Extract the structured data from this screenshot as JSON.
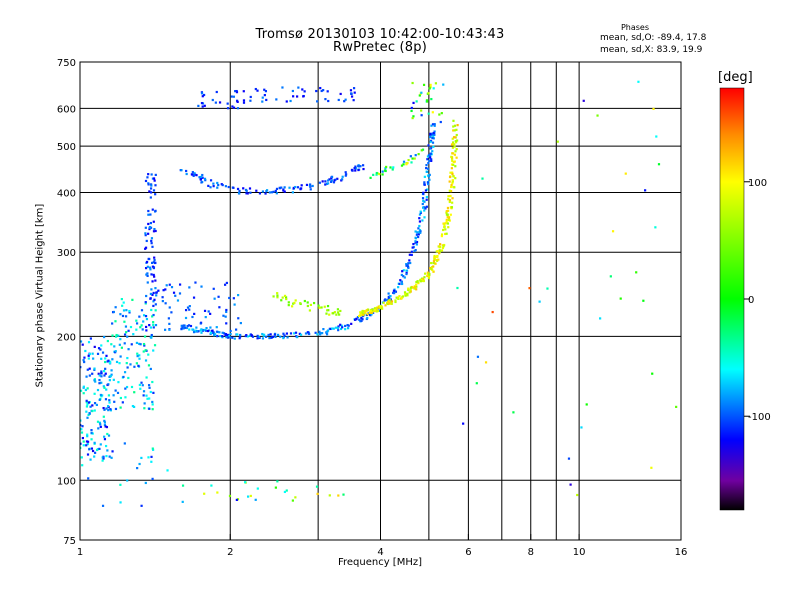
{
  "chart_data": {
    "type": "scatter",
    "title": "Tromsø 20130103 10:42:00-10:43:43",
    "subtitle": "RwPretec (8p)",
    "xlabel": "Frequency [MHz]",
    "ylabel": "Stationary phase Virtual Height [km]",
    "x_scale": "log",
    "y_scale": "log",
    "xlim": [
      1,
      16
    ],
    "ylim": [
      75,
      750
    ],
    "x_ticks": [
      1,
      2,
      4,
      6,
      8,
      10,
      16
    ],
    "x_tick_labels": [
      "1",
      "2",
      "4",
      "6",
      "8",
      "10",
      "16"
    ],
    "x_minor_ticks": [
      3,
      5,
      7,
      9
    ],
    "y_ticks": [
      75,
      100,
      200,
      300,
      400,
      500,
      600,
      750
    ],
    "y_tick_labels": [
      "75",
      "100",
      "200",
      "300",
      "400",
      "500",
      "600",
      "750"
    ],
    "grid": true,
    "colorbar": {
      "unit": "[deg]",
      "range": [
        -180,
        180
      ],
      "ticks": [
        100,
        0,
        -100
      ],
      "tick_labels": [
        "100",
        "0",
        "-100"
      ],
      "stops": [
        {
          "v": -180,
          "color": "#000000"
        },
        {
          "v": -155,
          "color": "#7000a0"
        },
        {
          "v": -120,
          "color": "#0000ff"
        },
        {
          "v": -60,
          "color": "#00ffff"
        },
        {
          "v": 0,
          "color": "#00ff00"
        },
        {
          "v": 100,
          "color": "#ffff00"
        },
        {
          "v": 140,
          "color": "#ff8c00"
        },
        {
          "v": 180,
          "color": "#ff0000"
        }
      ]
    },
    "phases_legend": {
      "title": "Phases",
      "line1": "mean, sd,O: -89.4, 17.8",
      "line2": "mean, sd,X:  83.9, 19.9"
    },
    "clusters": [
      {
        "x": [
          1.0,
          1.15
        ],
        "y": [
          110,
          200
        ],
        "n": 160,
        "phase": [
          -130,
          -40
        ]
      },
      {
        "x": [
          1.15,
          1.42
        ],
        "y": [
          140,
          240
        ],
        "n": 140,
        "phase": [
          -110,
          -30
        ]
      },
      {
        "x": [
          1.35,
          1.42
        ],
        "y": [
          200,
          450
        ],
        "n": 90,
        "phase": [
          -125,
          -85
        ]
      },
      {
        "x": [
          1.4,
          2.1
        ],
        "y": [
          205,
          260
        ],
        "n": 70,
        "phase": [
          -120,
          -80
        ]
      },
      {
        "x": [
          1.0,
          1.5
        ],
        "y": [
          88,
          120
        ],
        "n": 25,
        "phase": [
          -120,
          -40
        ]
      },
      {
        "x": [
          1.6,
          3.5
        ],
        "y": [
          90,
          100
        ],
        "n": 25,
        "phase": [
          -120,
          120
        ]
      },
      {
        "x": [
          1.7,
          2.2
        ],
        "y": [
          600,
          655
        ],
        "n": 30,
        "phase": [
          -125,
          -90
        ]
      },
      {
        "x": [
          2.2,
          3.6
        ],
        "y": [
          620,
          665
        ],
        "n": 40,
        "phase": [
          -125,
          -85
        ]
      },
      {
        "x": [
          4.6,
          5.4
        ],
        "y": [
          560,
          680
        ],
        "n": 30,
        "phase": [
          -125,
          120
        ]
      },
      {
        "x": [
          5.6,
          16
        ],
        "y": [
          90,
          700
        ],
        "n": 35,
        "phase": [
          -140,
          160
        ]
      }
    ],
    "curves": [
      {
        "name": "",
        "x": [
          1.6,
          1.8,
          2.0,
          2.3,
          2.6,
          3.0,
          3.3,
          3.7
        ],
        "y": [
          450,
          420,
          405,
          400,
          405,
          415,
          430,
          455
        ],
        "n": 120,
        "spread": 0.03,
        "phase": [
          -125,
          -80
        ]
      },
      {
        "name": "",
        "x": [
          1.6,
          1.8,
          2.0,
          2.4,
          3.0,
          3.5,
          4.0,
          4.4,
          4.7,
          4.9,
          5.0,
          5.1
        ],
        "y": [
          210,
          204,
          200,
          200,
          203,
          212,
          230,
          260,
          310,
          380,
          460,
          560
        ],
        "n": 320,
        "spread": 0.025,
        "phase": [
          -125,
          -65
        ]
      },
      {
        "name": "",
        "x": [
          3.6,
          4.0,
          4.5,
          5.0,
          5.3,
          5.5,
          5.6,
          5.65
        ],
        "y": [
          222,
          230,
          245,
          270,
          310,
          370,
          450,
          560
        ],
        "n": 260,
        "spread": 0.025,
        "phase": [
          60,
          125
        ]
      },
      {
        "name": "",
        "x": [
          2.4,
          2.7,
          3.0,
          3.3
        ],
        "y": [
          245,
          235,
          230,
          225
        ],
        "n": 40,
        "spread": 0.04,
        "phase": [
          30,
          90
        ]
      },
      {
        "name": "",
        "x": [
          3.8,
          4.2,
          4.6,
          4.9
        ],
        "y": [
          430,
          450,
          470,
          490
        ],
        "n": 30,
        "spread": 0.03,
        "phase": [
          -100,
          110
        ]
      }
    ]
  }
}
